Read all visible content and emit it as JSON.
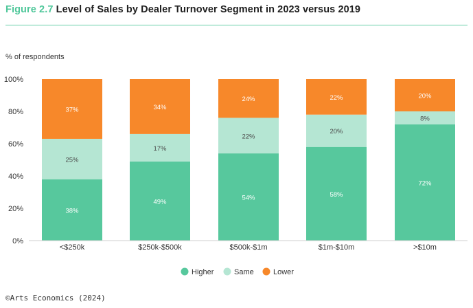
{
  "figure": {
    "number": "Figure 2.7",
    "title": "Level of Sales by Dealer Turnover Segment in 2023 versus 2019"
  },
  "source": "©Arts Economics (2024)",
  "chart_data": {
    "type": "bar",
    "stacked": true,
    "ylabel": "% of respondents",
    "ylim": [
      0,
      100
    ],
    "yticks": [
      0,
      20,
      40,
      60,
      80,
      100
    ],
    "ytick_labels": [
      "0%",
      "20%",
      "40%",
      "60%",
      "80%",
      "100%"
    ],
    "categories": [
      "<$250k",
      "$250k-$500k",
      "$500k-$1m",
      "$1m-$10m",
      ">$10m"
    ],
    "series": [
      {
        "name": "Higher",
        "color": "#57c89d",
        "values": [
          38,
          49,
          54,
          58,
          72
        ],
        "labels": [
          "38%",
          "49%",
          "54%",
          "58%",
          "72%"
        ]
      },
      {
        "name": "Same",
        "color": "#b5e6d3",
        "values": [
          25,
          17,
          22,
          20,
          8
        ],
        "labels": [
          "25%",
          "17%",
          "22%",
          "20%",
          "8%"
        ]
      },
      {
        "name": "Lower",
        "color": "#f7882a",
        "values": [
          37,
          34,
          24,
          22,
          20
        ],
        "labels": [
          "37%",
          "34%",
          "24%",
          "22%",
          "20%"
        ]
      }
    ],
    "legend": "bottom-center",
    "grid": false
  }
}
